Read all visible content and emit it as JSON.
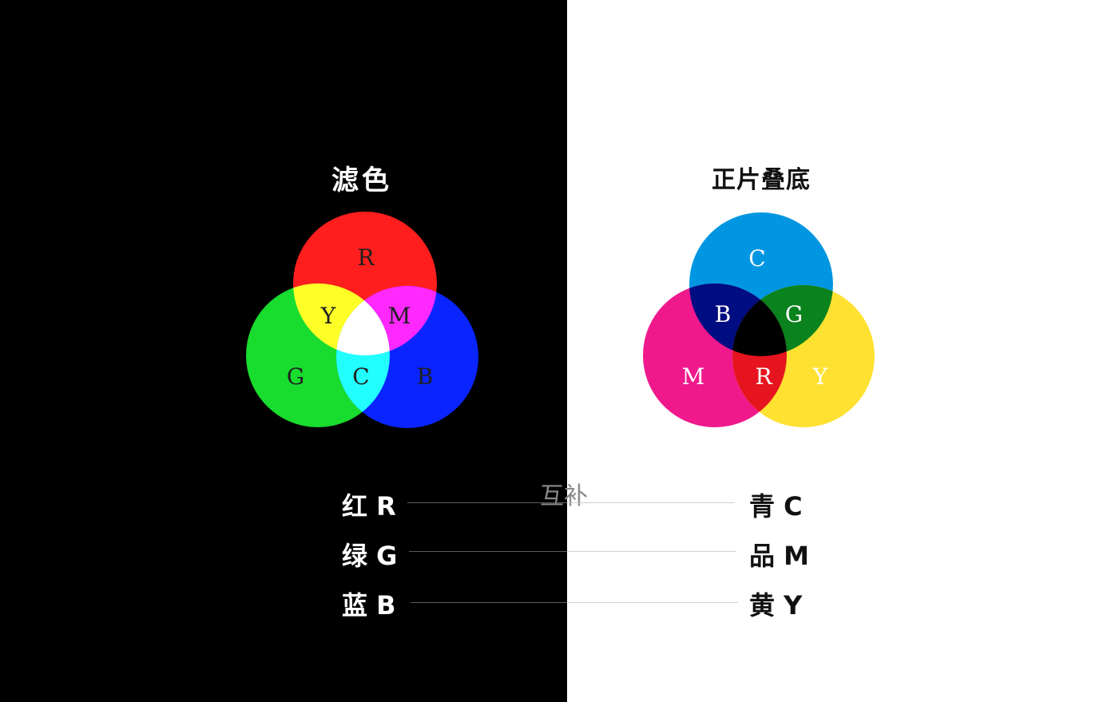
{
  "left": {
    "title": "滤色",
    "circles": [
      {
        "label": "R",
        "color": "#ff1e1e"
      },
      {
        "label": "G",
        "color": "#18dc2e"
      },
      {
        "label": "B",
        "color": "#0a24ff"
      }
    ],
    "overlap_labels": [
      "Y",
      "M",
      "C"
    ],
    "overlap_colors": {
      "Y": "#ffff28",
      "M": "#ff28ff",
      "C": "#22ffff",
      "center": "#ffffff"
    },
    "label_color": "#202020"
  },
  "right": {
    "title": "正片叠底",
    "circles": [
      {
        "label": "C",
        "color": "#0096e1"
      },
      {
        "label": "M",
        "color": "#f0198c"
      },
      {
        "label": "Y",
        "color": "#ffe132"
      }
    ],
    "overlap_labels": [
      "B",
      "G",
      "R"
    ],
    "overlap_colors": {
      "B": "#000c82",
      "G": "#0a821e",
      "R": "#e6141e",
      "center": "#000000"
    },
    "label_color": "#ffffff"
  },
  "complement_label": "互补",
  "pairs": [
    {
      "left": "红 R",
      "right": "青 C"
    },
    {
      "left": "绿 G",
      "right": "品 M"
    },
    {
      "left": "蓝 B",
      "right": "黄 Y"
    }
  ]
}
